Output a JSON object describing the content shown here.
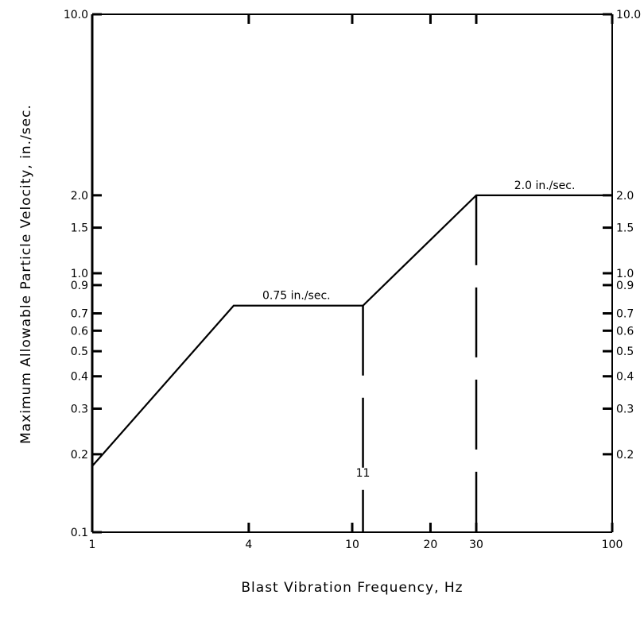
{
  "chart_data": {
    "type": "line",
    "title": "",
    "xlabel": "Blast Vibration Frequency, Hz",
    "ylabel": "Maximum Allowable Particle Velocity, in./sec.",
    "x_scale": "log",
    "y_scale": "log",
    "xlim": [
      1,
      100
    ],
    "ylim": [
      0.1,
      10
    ],
    "x_ticks": [
      {
        "value": 1,
        "label": "1"
      },
      {
        "value": 4,
        "label": "4"
      },
      {
        "value": 10,
        "label": "10"
      },
      {
        "value": 20,
        "label": "20"
      },
      {
        "value": 30,
        "label": "30"
      },
      {
        "value": 100,
        "label": "100"
      }
    ],
    "y_ticks_left": [
      {
        "value": 10,
        "label": "10.0"
      },
      {
        "value": 2,
        "label": "2.0"
      },
      {
        "value": 1.5,
        "label": "1.5"
      },
      {
        "value": 1,
        "label": "1.0"
      },
      {
        "value": 0.9,
        "label": "0.9"
      },
      {
        "value": 0.7,
        "label": "0.7"
      },
      {
        "value": 0.6,
        "label": "0.6"
      },
      {
        "value": 0.5,
        "label": "0.5"
      },
      {
        "value": 0.4,
        "label": "0.4"
      },
      {
        "value": 0.3,
        "label": "0.3"
      },
      {
        "value": 0.2,
        "label": "0.2"
      },
      {
        "value": 0.1,
        "label": "0.1"
      }
    ],
    "y_ticks_right": [
      {
        "value": 10,
        "label": "10.0"
      },
      {
        "value": 2,
        "label": "2.0"
      },
      {
        "value": 1.5,
        "label": "1.5"
      },
      {
        "value": 1,
        "label": "1.0"
      },
      {
        "value": 0.9,
        "label": "0.9"
      },
      {
        "value": 0.7,
        "label": "0.7"
      },
      {
        "value": 0.6,
        "label": "0.6"
      },
      {
        "value": 0.5,
        "label": "0.5"
      },
      {
        "value": 0.4,
        "label": "0.4"
      },
      {
        "value": 0.3,
        "label": "0.3"
      },
      {
        "value": 0.2,
        "label": "0.2"
      }
    ],
    "series": [
      {
        "x": [
          1,
          3.5,
          11,
          30,
          100
        ],
        "y": [
          0.18,
          0.75,
          0.75,
          2.0,
          2.0
        ]
      }
    ],
    "reference_lines": [
      {
        "x": 11,
        "y_top": 0.75,
        "style": "dashed",
        "label": "11"
      },
      {
        "x": 30,
        "y_top": 2.0,
        "style": "dashed"
      }
    ],
    "annotations": [
      {
        "text": "0.75 in./sec.",
        "x": 6.1,
        "y": 0.75
      },
      {
        "text": "2.0 in./sec.",
        "x": 55,
        "y": 2.0
      }
    ],
    "grid": false,
    "legend": "none"
  }
}
